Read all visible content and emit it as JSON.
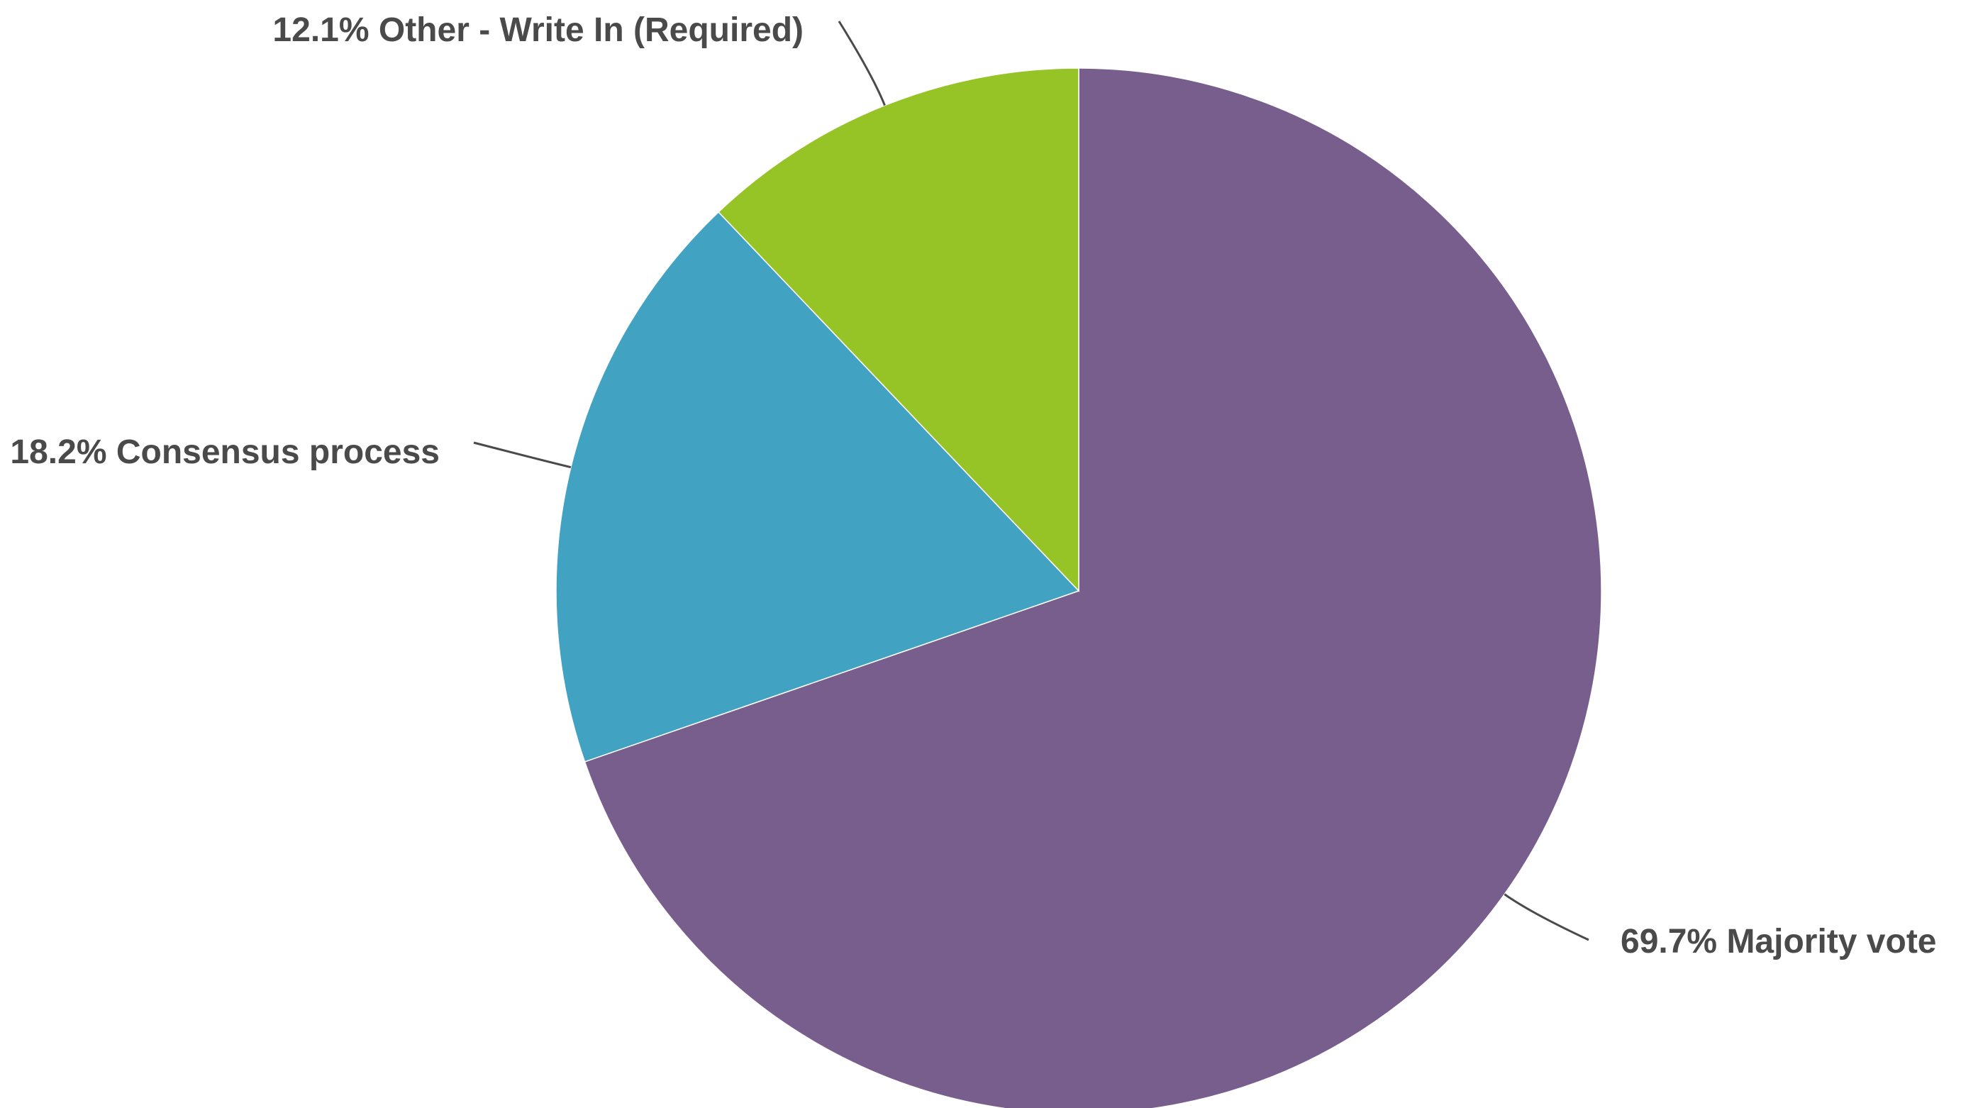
{
  "chart_data": {
    "type": "pie",
    "title": "",
    "start_angle_deg": 0,
    "direction": "clockwise",
    "slices": [
      {
        "label": "Majority vote",
        "value": 69.7,
        "display": "69.7% Majority vote",
        "color": "#785E8C"
      },
      {
        "label": "Consensus process",
        "value": 18.2,
        "display": "18.2% Consensus process",
        "color": "#42A2C2"
      },
      {
        "label": "Other - Write In (Required)",
        "value": 12.1,
        "display": "12.1% Other - Write In (Required)",
        "color": "#96C325"
      }
    ]
  }
}
